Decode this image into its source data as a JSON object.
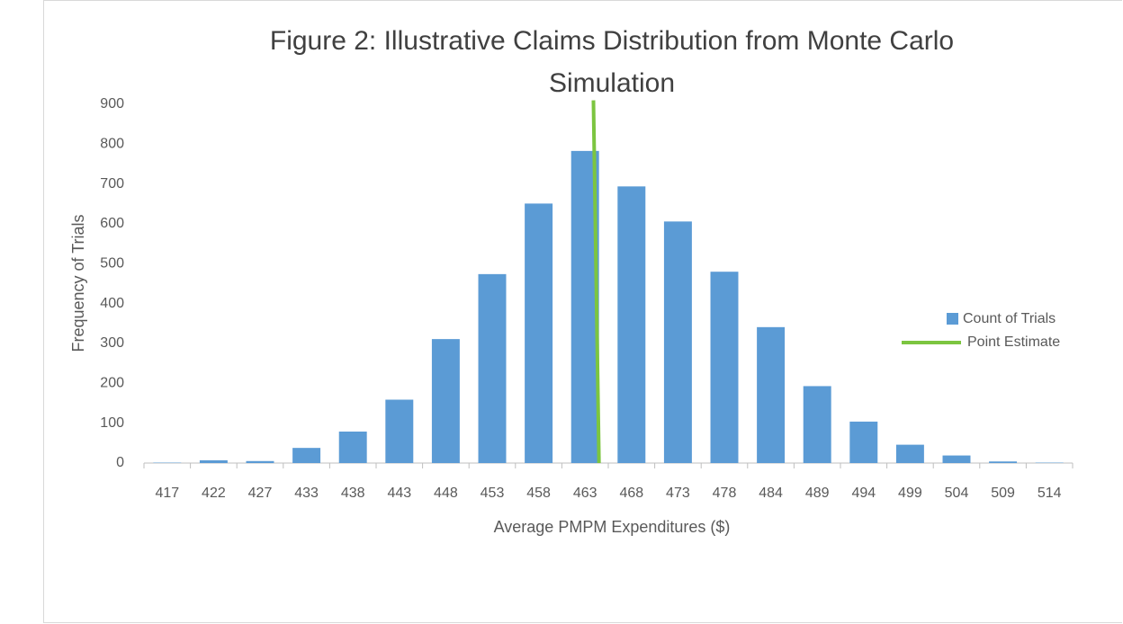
{
  "chart_data": {
    "type": "bar",
    "title": "Figure 2: Illustrative Claims Distribution from Monte Carlo Simulation",
    "x_label": "Average PMPM Expenditures ($)",
    "y_label": "Frequency of Trials",
    "categories": [
      "417",
      "422",
      "427",
      "433",
      "438",
      "443",
      "448",
      "453",
      "458",
      "463",
      "468",
      "473",
      "478",
      "484",
      "489",
      "494",
      "499",
      "504",
      "509",
      "514"
    ],
    "series": [
      {
        "name": "Count of Trials",
        "color": "#5b9bd5",
        "values": [
          1,
          7,
          5,
          38,
          79,
          159,
          311,
          474,
          651,
          783,
          694,
          606,
          480,
          341,
          193,
          104,
          46,
          19,
          4,
          1
        ]
      }
    ],
    "point_estimate": {
      "name": "Point Estimate",
      "color": "#7cc540",
      "x": [
        464.5,
        463.9
      ],
      "values": [
        0,
        910
      ]
    },
    "ylim": [
      0,
      900
    ],
    "yticks": [
      0,
      100,
      200,
      300,
      400,
      500,
      600,
      700,
      800,
      900
    ],
    "grid": false,
    "legend": "right"
  }
}
